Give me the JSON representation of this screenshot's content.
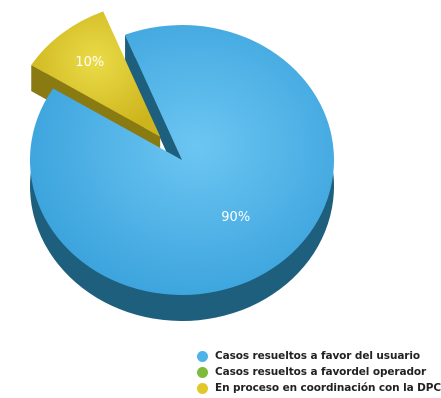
{
  "chart_data": {
    "type": "pie",
    "slices": [
      {
        "label": "Casos resueltos a favor del usuario",
        "value": 90,
        "display": "90%",
        "color": "#4fb3e8",
        "side_color": "#1d5f7c"
      },
      {
        "label": "Casos resueltos a favordel operador",
        "value": 0,
        "display": "",
        "color": "#7dbb3a",
        "side_color": "#4a7a1c"
      },
      {
        "label": "En proceso en coordinación con la DPC",
        "value": 10,
        "display": "10%",
        "color": "#e0c82a",
        "side_color": "#8a7a12"
      }
    ],
    "legend_position": "bottom-right"
  }
}
